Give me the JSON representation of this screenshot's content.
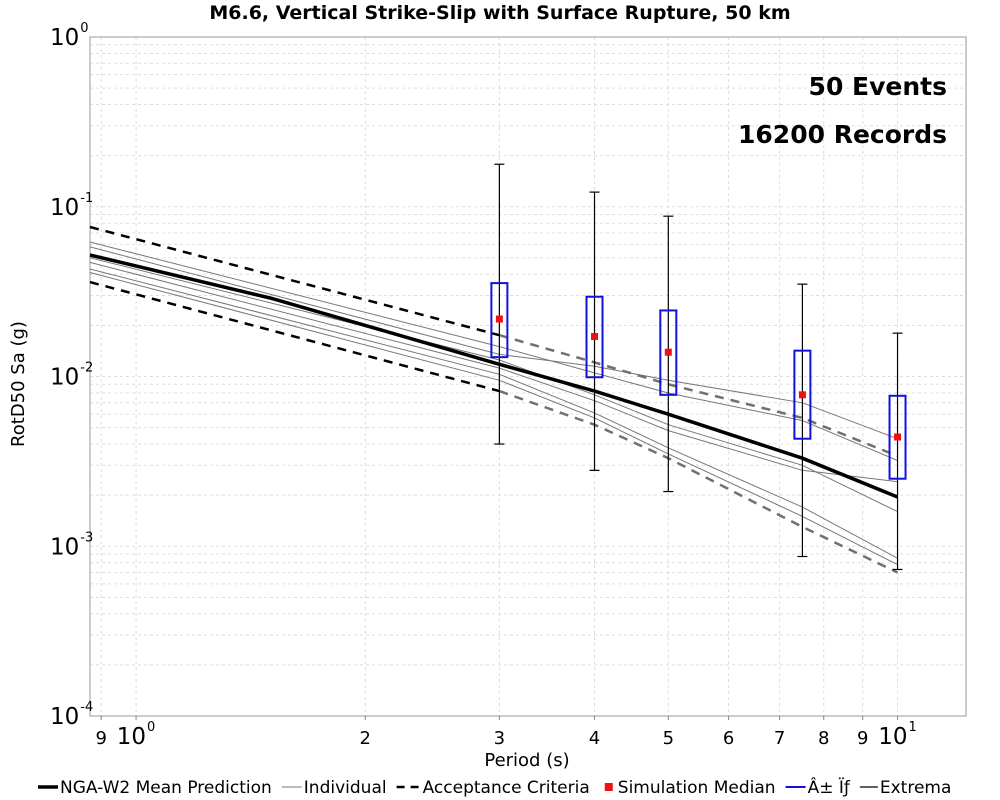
{
  "chart_data": {
    "type": "line",
    "title": "M6.6, Vertical Strike-Slip with Surface Rupture, 50 km",
    "xlabel": "Period (s)",
    "ylabel": "RotD50 Sa (g)",
    "x_scale": "log",
    "y_scale": "log",
    "xlim": [
      0.87,
      12.3
    ],
    "ylim": [
      0.0001,
      1
    ],
    "grid": true,
    "legend_position": "bottom",
    "annotations": [
      "50 Events",
      "16200 Records"
    ],
    "x_ticks": [
      {
        "value": 0.9,
        "base": "9",
        "exp": ""
      },
      {
        "value": 1,
        "base": "10",
        "exp": "0"
      },
      {
        "value": 2,
        "base": "2",
        "exp": ""
      },
      {
        "value": 3,
        "base": "3",
        "exp": ""
      },
      {
        "value": 4,
        "base": "4",
        "exp": ""
      },
      {
        "value": 5,
        "base": "5",
        "exp": ""
      },
      {
        "value": 6,
        "base": "6",
        "exp": ""
      },
      {
        "value": 7,
        "base": "7",
        "exp": ""
      },
      {
        "value": 8,
        "base": "8",
        "exp": ""
      },
      {
        "value": 9,
        "base": "9",
        "exp": ""
      },
      {
        "value": 10,
        "base": "10",
        "exp": "1"
      }
    ],
    "y_ticks": [
      {
        "value": 0.0001,
        "base": "10",
        "exp": "-4"
      },
      {
        "value": 0.001,
        "base": "10",
        "exp": "-3"
      },
      {
        "value": 0.01,
        "base": "10",
        "exp": "-2"
      },
      {
        "value": 0.1,
        "base": "10",
        "exp": "-1"
      },
      {
        "value": 1,
        "base": "10",
        "exp": "0"
      }
    ],
    "series": [
      {
        "name": "NGA-W2 Mean Prediction",
        "kind": "mean",
        "color": "#000000",
        "x": [
          0.87,
          1.5,
          2,
          3,
          4,
          5,
          7.5,
          10
        ],
        "y": [
          0.052,
          0.029,
          0.02,
          0.0118,
          0.0082,
          0.006,
          0.0033,
          0.00195
        ]
      },
      {
        "name": "Individual",
        "kind": "individual",
        "color": "#777777",
        "lines": [
          {
            "x": [
              0.87,
              3,
              4,
              5,
              7.5,
              10
            ],
            "y": [
              0.062,
              0.015,
              0.0105,
              0.008,
              0.0055,
              0.0032
            ]
          },
          {
            "x": [
              0.87,
              3,
              4,
              5,
              7.5,
              10
            ],
            "y": [
              0.058,
              0.0135,
              0.0115,
              0.0095,
              0.007,
              0.0043
            ]
          },
          {
            "x": [
              0.87,
              3,
              4,
              5,
              7.5,
              10
            ],
            "y": [
              0.05,
              0.0125,
              0.0078,
              0.0052,
              0.003,
              0.0016
            ]
          },
          {
            "x": [
              0.87,
              3,
              4,
              5,
              7.5,
              10
            ],
            "y": [
              0.047,
              0.0112,
              0.0072,
              0.0048,
              0.0028,
              0.0024
            ]
          },
          {
            "x": [
              0.87,
              3,
              4,
              5,
              7.5,
              10
            ],
            "y": [
              0.043,
              0.0103,
              0.0061,
              0.0038,
              0.0017,
              0.00085
            ]
          },
          {
            "x": [
              0.87,
              3,
              4,
              5,
              7.5,
              10
            ],
            "y": [
              0.041,
              0.0095,
              0.0057,
              0.0035,
              0.0015,
              0.00078
            ]
          }
        ]
      },
      {
        "name": "Acceptance Criteria",
        "kind": "acceptance",
        "color": "#000000",
        "color_extended": "#707070",
        "split_x": 3,
        "upper": {
          "x": [
            0.87,
            3,
            4,
            5,
            7.5,
            10
          ],
          "y": [
            0.076,
            0.0175,
            0.0121,
            0.009,
            0.0057,
            0.0034
          ]
        },
        "lower": {
          "x": [
            0.87,
            3,
            4,
            5,
            7.5,
            10
          ],
          "y": [
            0.036,
            0.0082,
            0.0052,
            0.0033,
            0.0013,
            0.0007
          ]
        }
      },
      {
        "name": "Simulation Median",
        "kind": "median",
        "color": "#ee1111",
        "x": [
          3,
          4,
          5,
          7.5,
          10
        ],
        "y": [
          0.0218,
          0.0172,
          0.0139,
          0.0078,
          0.0044
        ]
      },
      {
        "name": "Â± Ïƒ",
        "kind": "sigma",
        "color": "#1111dd",
        "x": [
          3,
          4,
          5,
          7.5,
          10
        ],
        "low": [
          0.013,
          0.0099,
          0.0078,
          0.0043,
          0.0025
        ],
        "high": [
          0.0355,
          0.0295,
          0.0245,
          0.0142,
          0.0077
        ]
      },
      {
        "name": "Extrema",
        "kind": "extrema",
        "color": "#000000",
        "x": [
          3,
          4,
          5,
          7.5,
          10
        ],
        "min": [
          0.004,
          0.0028,
          0.0021,
          0.00087,
          0.00073
        ],
        "max": [
          0.178,
          0.122,
          0.088,
          0.035,
          0.018
        ]
      }
    ]
  }
}
